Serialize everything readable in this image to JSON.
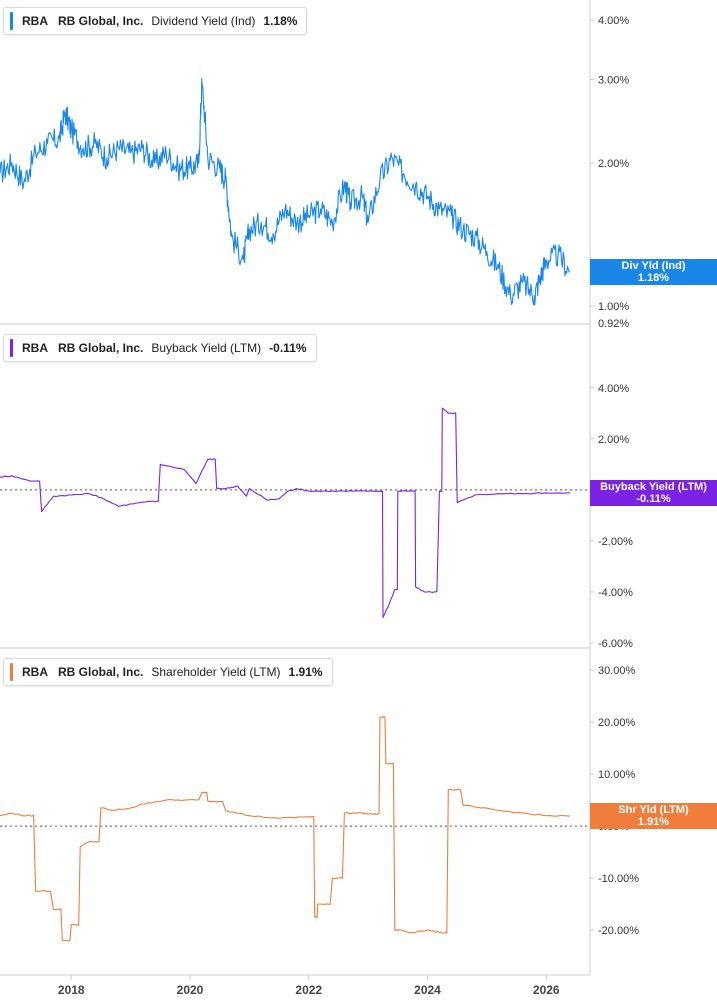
{
  "x_axis": {
    "labels": [
      "2018",
      "2020",
      "2022",
      "2024",
      "2026"
    ]
  },
  "panels": [
    {
      "id": "dividend",
      "ticker": "RBA",
      "company": "RB Global, Inc.",
      "metric": "Dividend Yield (Ind)",
      "value": "1.18%",
      "color": "#1a87e8",
      "tag_line1": "Div Yld (Ind)",
      "tag_line2": "1.18%",
      "ticks": [
        "4.00%",
        "3.00%",
        "2.00%",
        "1.00%"
      ],
      "extra_tick": "0.92%"
    },
    {
      "id": "buyback",
      "ticker": "RBA",
      "company": "RB Global, Inc.",
      "metric": "Buyback Yield (LTM)",
      "value": "-0.11%",
      "color": "#7b22e6",
      "tag_line1": "Buyback Yield (LTM)",
      "tag_line2": "-0.11%",
      "ticks": [
        "4.00%",
        "2.00%",
        "-2.00%",
        "-4.00%",
        "-6.00%"
      ]
    },
    {
      "id": "shareholder",
      "ticker": "RBA",
      "company": "RB Global, Inc.",
      "metric": "Shareholder Yield (LTM)",
      "value": "1.91%",
      "color": "#f07d3c",
      "tag_line1": "Shr Yld (LTM)",
      "tag_line2": "1.91%",
      "ticks": [
        "30.00%",
        "20.00%",
        "10.00%",
        "0.00%",
        "-10.00%",
        "-20.00%"
      ]
    }
  ],
  "chart_data": [
    {
      "type": "line",
      "title": "RBA RB Global, Inc. Dividend Yield (Ind) 1.18%",
      "series": [
        {
          "name": "Dividend Yield (Ind)",
          "unit": "%",
          "x": [
            2016.8,
            2017.0,
            2017.2,
            2017.4,
            2017.6,
            2017.8,
            2017.9,
            2018.0,
            2018.2,
            2018.4,
            2018.6,
            2018.8,
            2019.0,
            2019.2,
            2019.4,
            2019.6,
            2019.8,
            2020.0,
            2020.15,
            2020.2,
            2020.3,
            2020.5,
            2020.6,
            2020.7,
            2020.9,
            2021.0,
            2021.2,
            2021.4,
            2021.6,
            2021.8,
            2022.0,
            2022.2,
            2022.4,
            2022.6,
            2022.7,
            2022.9,
            2023.0,
            2023.2,
            2023.4,
            2023.6,
            2023.8,
            2024.0,
            2024.2,
            2024.4,
            2024.6,
            2024.8,
            2025.0,
            2025.2,
            2025.4,
            2025.6,
            2025.8,
            2025.9,
            2026.0,
            2026.2,
            2026.4
          ],
          "y": [
            1.9,
            2.0,
            1.82,
            2.1,
            2.2,
            2.25,
            2.55,
            2.35,
            2.15,
            2.2,
            2.05,
            2.15,
            2.1,
            2.15,
            2.0,
            2.1,
            1.95,
            1.95,
            2.0,
            2.95,
            2.05,
            1.95,
            1.85,
            1.4,
            1.25,
            1.45,
            1.5,
            1.42,
            1.6,
            1.5,
            1.55,
            1.6,
            1.5,
            1.8,
            1.65,
            1.7,
            1.5,
            1.85,
            2.05,
            1.9,
            1.8,
            1.7,
            1.6,
            1.55,
            1.45,
            1.4,
            1.3,
            1.2,
            1.05,
            1.12,
            1.05,
            1.15,
            1.25,
            1.28,
            1.18
          ]
        }
      ],
      "ylim": [
        0.92,
        4.1
      ],
      "ytick_values": [
        4.0,
        3.0,
        2.0,
        1.0
      ],
      "last_value": 1.18,
      "ylabel": "",
      "xlabel": ""
    },
    {
      "type": "line",
      "title": "RBA RB Global, Inc. Buyback Yield (LTM) -0.11%",
      "series": [
        {
          "name": "Buyback Yield (LTM)",
          "unit": "%",
          "x": [
            2016.8,
            2017.0,
            2017.3,
            2017.5,
            2017.7,
            2018.0,
            2018.3,
            2018.5,
            2018.8,
            2019.0,
            2019.3,
            2019.5,
            2019.7,
            2019.9,
            2020.1,
            2020.3,
            2020.45,
            2020.6,
            2020.8,
            2020.95,
            2021.0,
            2021.3,
            2021.5,
            2021.65,
            2021.8,
            2022.0,
            2022.3,
            2022.6,
            2022.9,
            2023.1,
            2023.2,
            2023.25,
            2023.35,
            2023.45,
            2023.5,
            2023.75,
            2023.8,
            2023.95,
            2024.2,
            2024.25,
            2024.35,
            2024.5,
            2024.6,
            2024.8,
            2025.2,
            2025.6,
            2026.0,
            2026.4
          ],
          "y": [
            0.5,
            0.55,
            0.35,
            -0.85,
            -0.25,
            -0.2,
            -0.15,
            -0.3,
            -0.65,
            -0.55,
            -0.45,
            1.0,
            0.9,
            0.8,
            0.25,
            1.2,
            0.05,
            0.05,
            0.15,
            -0.25,
            0.05,
            -0.4,
            -0.35,
            -0.05,
            0.05,
            -0.05,
            -0.05,
            -0.05,
            -0.05,
            -0.05,
            -0.05,
            -5.0,
            -4.5,
            -3.9,
            -0.05,
            -0.05,
            -3.8,
            -4.0,
            -0.05,
            3.2,
            3.0,
            -0.5,
            -0.4,
            -0.2,
            -0.15,
            -0.15,
            -0.12,
            -0.11
          ]
        }
      ],
      "ylim": [
        -6.0,
        4.5
      ],
      "ytick_values": [
        4.0,
        2.0,
        -2.0,
        -4.0,
        -6.0
      ],
      "last_value": -0.11,
      "ylabel": "",
      "xlabel": ""
    },
    {
      "type": "line",
      "title": "RBA RB Global, Inc. Shareholder Yield (LTM) 1.91%",
      "series": [
        {
          "name": "Shareholder Yield (LTM)",
          "unit": "%",
          "x": [
            2016.8,
            2017.0,
            2017.2,
            2017.4,
            2017.7,
            2017.85,
            2018.0,
            2018.15,
            2018.3,
            2018.5,
            2018.7,
            2019.0,
            2019.3,
            2019.6,
            2019.9,
            2020.2,
            2020.3,
            2020.6,
            2021.0,
            2021.5,
            2022.0,
            2022.1,
            2022.15,
            2022.4,
            2022.6,
            2022.9,
            2023.1,
            2023.2,
            2023.3,
            2023.45,
            2023.55,
            2023.7,
            2024.0,
            2024.2,
            2024.35,
            2024.6,
            2024.9,
            2025.2,
            2025.6,
            2026.0,
            2026.4
          ],
          "y": [
            2.0,
            2.5,
            2.0,
            -12.5,
            -16.0,
            -22.0,
            -19.0,
            -4.0,
            -3.0,
            3.5,
            3.0,
            3.5,
            4.5,
            5.0,
            5.0,
            6.5,
            4.8,
            3.0,
            2.0,
            1.5,
            1.8,
            -17.5,
            -15.0,
            -10.0,
            2.5,
            2.5,
            2.3,
            21.0,
            12.0,
            -20.0,
            -20.0,
            -20.5,
            -20.0,
            -20.5,
            7.0,
            4.0,
            3.5,
            3.0,
            2.5,
            2.0,
            1.91
          ]
        }
      ],
      "ylim": [
        -25,
        31
      ],
      "ytick_values": [
        30,
        20,
        10,
        0,
        -10,
        -20
      ],
      "last_value": 1.91,
      "ylabel": "",
      "xlabel": ""
    }
  ]
}
